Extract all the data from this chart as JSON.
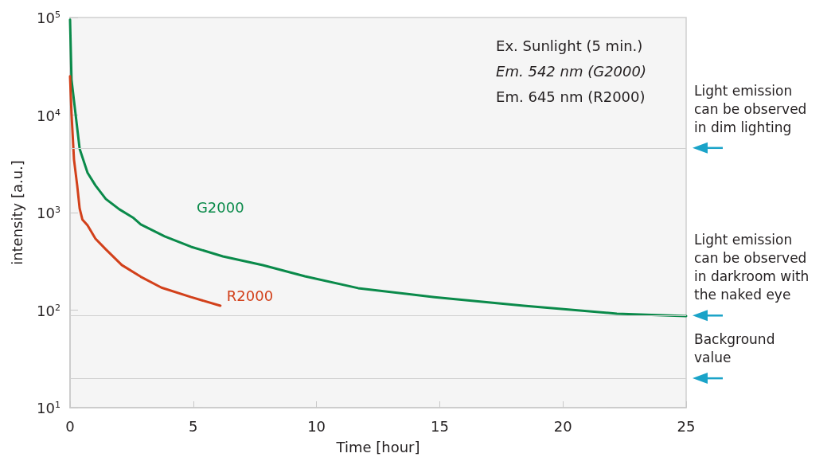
{
  "chart_data": {
    "type": "line",
    "xlabel": "Time [hour]",
    "ylabel": "intensity [a.u.]",
    "xlim": [
      0,
      25
    ],
    "xticks": [
      0,
      5,
      10,
      15,
      20,
      25
    ],
    "ylim": [
      10,
      100000
    ],
    "yticks": [
      {
        "value": 10,
        "label": "10$^{1}$"
      },
      {
        "value": 100,
        "label": "10$^{2}$"
      },
      {
        "value": 1000,
        "label": "10$^{3}$"
      },
      {
        "value": 10000,
        "label": "10$^{4}$"
      },
      {
        "value": 100000,
        "label": "10$^{5}$"
      }
    ],
    "log": "y",
    "grid": false,
    "legend": false,
    "marker": "none",
    "line_style": "solid",
    "series": [
      {
        "name": "G2000",
        "color": "#0a8a4a",
        "x": [
          0,
          0.06,
          0.39,
          0.71,
          1.03,
          1.45,
          2.0,
          2.55,
          2.87,
          3.84,
          4.91,
          6.2,
          7.82,
          9.53,
          11.69,
          14.79,
          18.41,
          22.19,
          25
        ],
        "values": [
          95000,
          23000,
          4500,
          2560,
          1900,
          1380,
          1080,
          890,
          755,
          570,
          446,
          356,
          289,
          222,
          168,
          136,
          111,
          92,
          87
        ]
      },
      {
        "name": "R2000",
        "color": "#d2401a",
        "x": [
          0,
          0.06,
          0.16,
          0.29,
          0.39,
          0.5,
          0.71,
          1.03,
          1.45,
          2.1,
          2.87,
          3.71,
          4.91,
          6.1
        ],
        "values": [
          25000,
          10300,
          3500,
          1900,
          1100,
          850,
          740,
          540,
          420,
          290,
          220,
          170,
          136,
          111
        ]
      }
    ],
    "ref_lines": [
      {
        "axis": "y",
        "value": 4600,
        "label": "Light emission can be observed in dim lighting",
        "color": "#d0d0d0"
      },
      {
        "axis": "y",
        "value": 88,
        "label": "Light emission can be observed in darkroom with the naked eye",
        "color": "#d0d0d0"
      },
      {
        "axis": "y",
        "value": 20,
        "label": "Background value",
        "color": "#d0d0d0"
      }
    ],
    "annotations": [
      "Ex. Sunlight (5 min.)",
      "Em. 542 nm (G2000)",
      "Em. 645 nm (R2000)"
    ]
  }
}
